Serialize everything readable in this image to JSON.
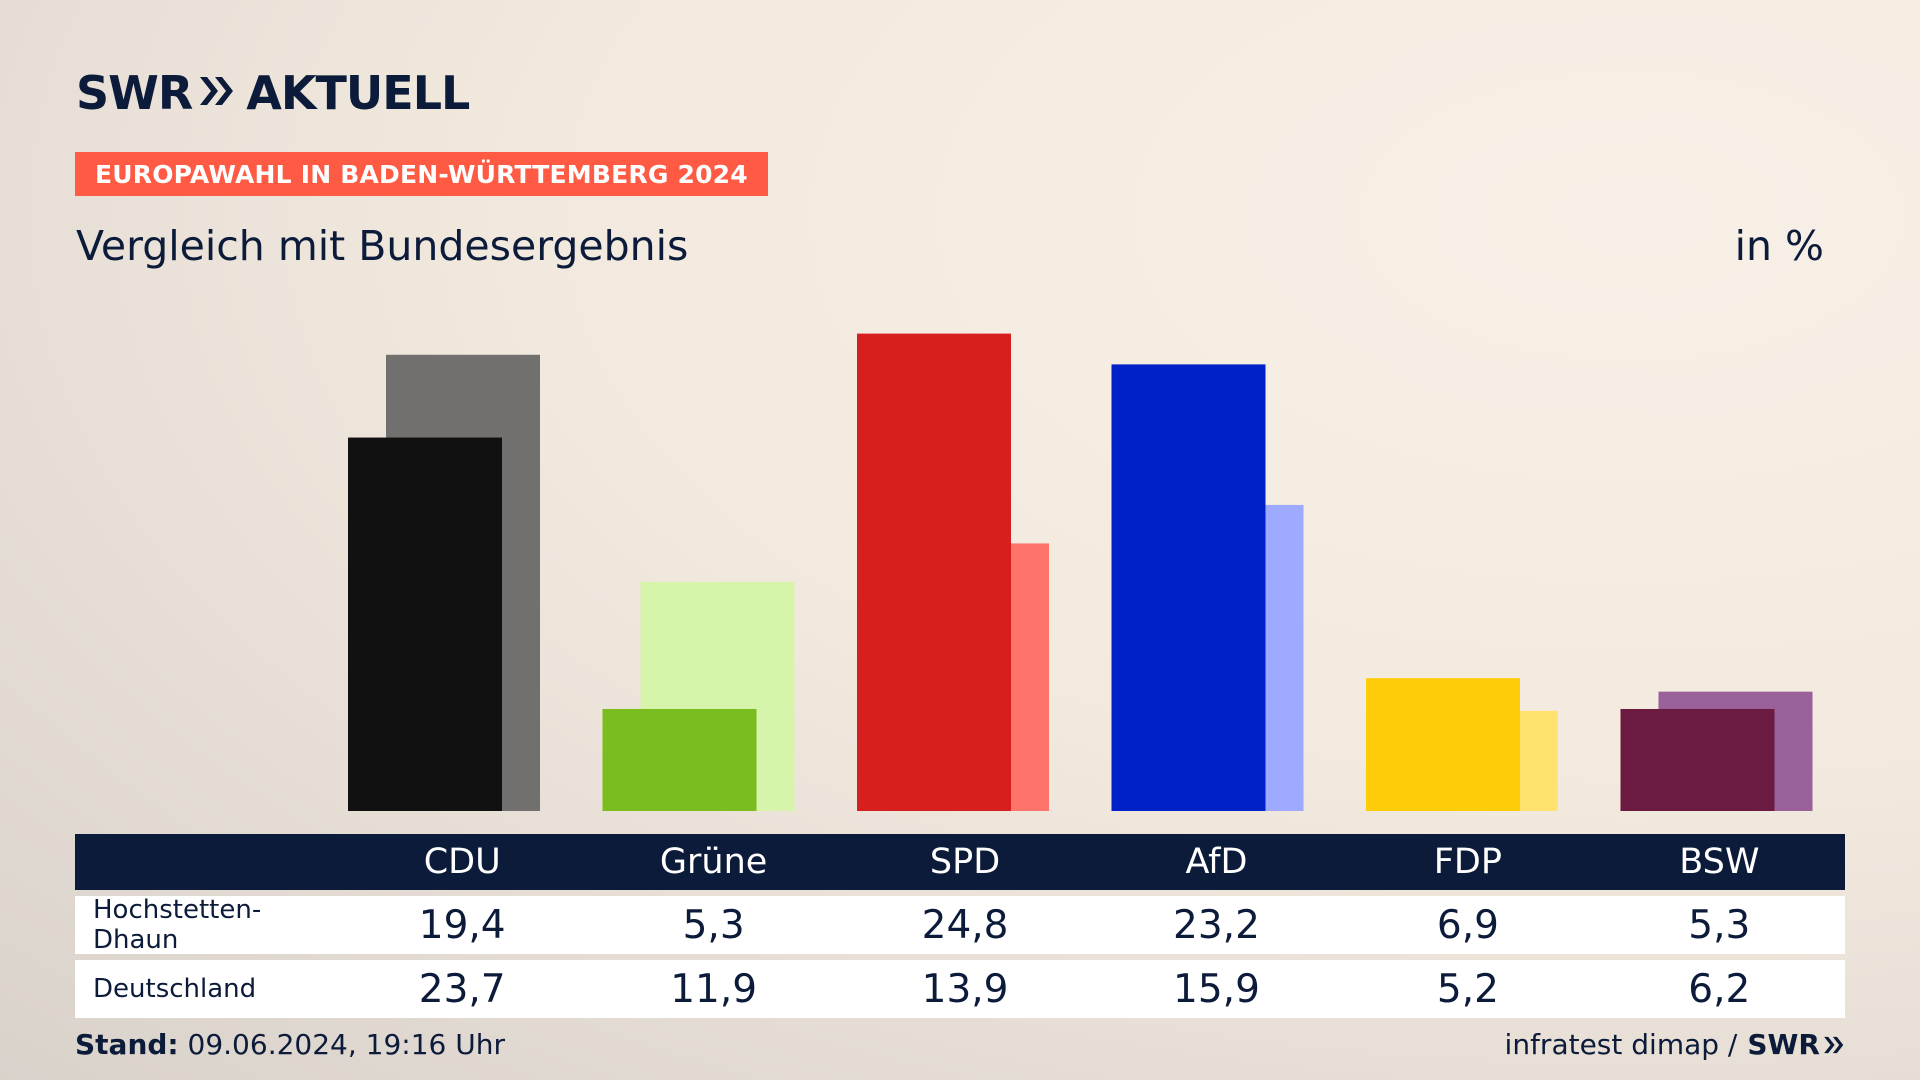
{
  "brand": {
    "name": "SWR",
    "product": "AKTUELL"
  },
  "badge": "EUROPAWAHL IN BADEN-WÜRTTEMBERG 2024",
  "subtitle": "Vergleich mit Bundesergebnis",
  "unit": "in %",
  "colors": {
    "navy": "#0c1b3a",
    "badge": "#ff5a43",
    "CDU": [
      "#111111",
      "#72706e"
    ],
    "Grüne": [
      "#7abd1e",
      "#d7f4ab"
    ],
    "SPD": [
      "#d81f1f",
      "#ff746a"
    ],
    "AfD": [
      "#0020c8",
      "#9eaaff"
    ],
    "FDP": [
      "#ffcc0a",
      "#ffe36e"
    ],
    "BSW": [
      "#6b1a41",
      "#996099"
    ]
  },
  "chart_data": {
    "type": "bar",
    "categories": [
      "CDU",
      "Grüne",
      "SPD",
      "AfD",
      "FDP",
      "BSW"
    ],
    "series": [
      {
        "name": "Hochstetten-Dhaun",
        "values": [
          19.4,
          5.3,
          24.8,
          23.2,
          6.9,
          5.3
        ]
      },
      {
        "name": "Deutschland",
        "values": [
          23.7,
          11.9,
          13.9,
          15.9,
          5.2,
          6.2
        ]
      }
    ]
  },
  "table": {
    "headers": [
      "CDU",
      "Grüne",
      "SPD",
      "AfD",
      "FDP",
      "BSW"
    ],
    "rows": [
      {
        "label": "Hochstetten-Dhaun",
        "values": [
          "19,4",
          "5,3",
          "24,8",
          "23,2",
          "6,9",
          "5,3"
        ]
      },
      {
        "label": "Deutschland",
        "values": [
          "23,7",
          "11,9",
          "13,9",
          "15,9",
          "5,2",
          "6,2"
        ]
      }
    ]
  },
  "footer": {
    "stand_label": "Stand:",
    "stand_value": "09.06.2024, 19:16 Uhr",
    "source": "infratest dimap /",
    "source_brand": "SWR"
  }
}
